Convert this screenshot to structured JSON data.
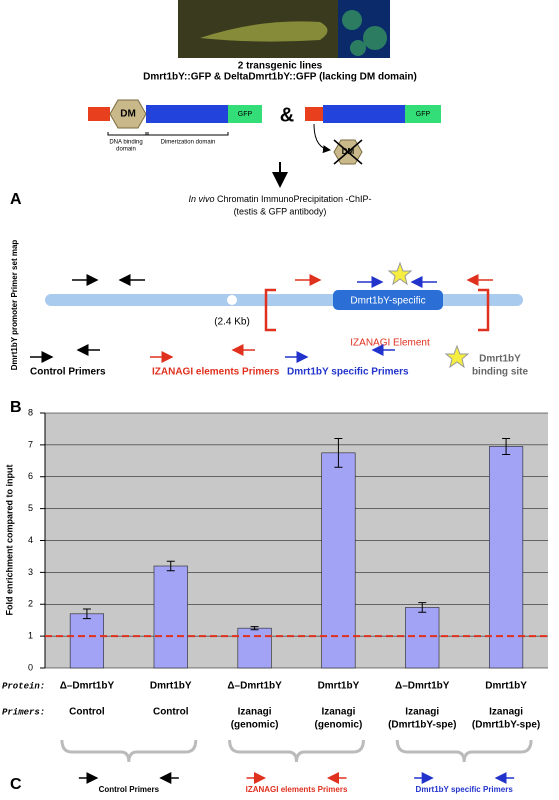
{
  "panel_a": {
    "label": "A",
    "caption_lines": [
      "2 transgenic lines",
      "Dmrt1bY::GFP & DeltaDmrt1bY::GFP (lacking DM domain)"
    ],
    "dm": "DM",
    "gfp": "GFP",
    "amp": "&",
    "dna_binding": [
      "DNA binding",
      "domain"
    ],
    "dimerization": "Dimerization domain",
    "chip_italic": "In vivo",
    "chip": "Chromatin ImmunoPrecipitation -ChIP-",
    "chip_sub": "(testis & GFP antibody)"
  },
  "panel_b": {
    "label": "B",
    "side_title": "Dmrt1bY promoter Primer set map",
    "gap": "(2.4 Kb)",
    "specific_box": "Dmrt1bY-specific",
    "element": "IZANAGI Element",
    "legend": {
      "control": "Control Primers",
      "izanagi": "IZANAGI elements Primers",
      "specific": "Dmrt1bY specific Primers",
      "site": [
        "Dmrt1bY",
        "binding site"
      ]
    }
  },
  "chart_data": {
    "type": "bar",
    "ylabel": "Fold enrichment compared to input",
    "ylim": [
      0,
      8
    ],
    "yticks": [
      0,
      1,
      2,
      3,
      4,
      5,
      6,
      7,
      8
    ],
    "grid": true,
    "background": "#c8c8c8",
    "row_labels": {
      "protein": "Protein:",
      "primers": "Primers:"
    },
    "categories": [
      "Δ–Dmrt1bY",
      "Dmrt1bY",
      "Δ–Dmrt1bY",
      "Dmrt1bY",
      "Δ–Dmrt1bY",
      "Dmrt1bY"
    ],
    "primers": [
      [
        "Control"
      ],
      [
        "Control"
      ],
      [
        "Izanagi",
        "(genomic)"
      ],
      [
        "Izanagi",
        "(genomic)"
      ],
      [
        "Izanagi",
        "(Dmrt1bY-spe)"
      ],
      [
        "Izanagi",
        "(Dmrt1bY-spe)"
      ]
    ],
    "series": [
      {
        "color": "#a3a3f5",
        "values": [
          1.7,
          3.2,
          1.25,
          6.75,
          1.9,
          6.95
        ],
        "errors": [
          0.15,
          0.15,
          0.05,
          0.45,
          0.15,
          0.25
        ]
      }
    ],
    "reference_line": {
      "value": 1,
      "color": "#e0301e"
    }
  },
  "panel_c": {
    "label": "C",
    "groups": [
      "Control Primers",
      "IZANAGI elements Primers",
      "Dmrt1bY specific Primers"
    ]
  }
}
